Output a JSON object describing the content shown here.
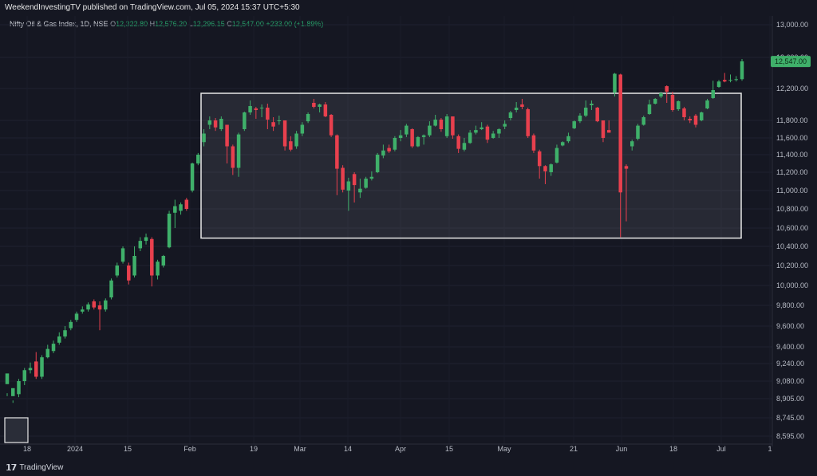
{
  "header": {
    "publish_line": "WeekendInvestingTV published on TradingView.com, Jul 05, 2024 15:37 UTC+5:30",
    "symbol": "Nifty Oil & Gas Index, 1D, NSE",
    "open_label": "O",
    "open": "12,322.80",
    "high_label": "H",
    "high": "12,576.20",
    "low_label": "L",
    "low": "12,296.15",
    "close_label": "C",
    "close": "12,547.00",
    "change": "+233.00 (+1.89%)"
  },
  "footer": {
    "brand": "TradingView"
  },
  "colors": {
    "up": "#3fb06a",
    "down": "#e8404e",
    "background": "#151722",
    "box_border": "#e8e8e8"
  },
  "chart_data": {
    "type": "candlestick",
    "y_axis_labels": [
      "13,000.00",
      "12,600.00",
      "12,200.00",
      "11,800.00",
      "11,600.00",
      "11,400.00",
      "11,200.00",
      "11,000.00",
      "10,800.00",
      "10,600.00",
      "10,400.00",
      "10,200.00",
      "10,000.00",
      "9,800.00",
      "9,600.00",
      "9,400.00",
      "9,240.00",
      "9,080.00",
      "8,905.00",
      "8,745.00",
      "8,595.00"
    ],
    "y_axis_values": [
      13000,
      12600,
      12200,
      11800,
      11600,
      11400,
      11200,
      11000,
      10800,
      10600,
      10400,
      10200,
      10000,
      9800,
      9600,
      9400,
      9240,
      9080,
      8905,
      8745,
      8595
    ],
    "x_axis_labels": [
      "18",
      "2024",
      "15",
      "Feb",
      "19",
      "Mar",
      "14",
      "Apr",
      "15",
      "May",
      "21",
      "Jun",
      "18",
      "Jul",
      "1"
    ],
    "last_price": 12547.0,
    "last_price_label": "12,547.00",
    "consolidation_range": {
      "low": 10490,
      "high": 12140
    },
    "candles": [
      [
        9050,
        9150,
        8960,
        8930
      ],
      [
        8930,
        9010,
        8890,
        8870
      ],
      [
        8950,
        9080,
        9100,
        8920
      ],
      [
        9080,
        9180,
        9200,
        9040
      ],
      [
        9180,
        9200,
        9250,
        9150
      ],
      [
        9260,
        9120,
        9350,
        9100
      ],
      [
        9120,
        9300,
        9320,
        9100
      ],
      [
        9300,
        9380,
        9420,
        9290
      ],
      [
        9360,
        9430,
        9460,
        9340
      ],
      [
        9440,
        9500,
        9540,
        9420
      ],
      [
        9500,
        9560,
        9600,
        9480
      ],
      [
        9580,
        9640,
        9660,
        9560
      ],
      [
        9660,
        9720,
        9740,
        9640
      ],
      [
        9740,
        9760,
        9790,
        9720
      ],
      [
        9760,
        9810,
        9830,
        9740
      ],
      [
        9840,
        9780,
        9860,
        9760
      ],
      [
        9800,
        9760,
        9840,
        9560
      ],
      [
        9760,
        9850,
        9870,
        9740
      ],
      [
        9880,
        10050,
        10070,
        9860
      ],
      [
        10100,
        10200,
        10230,
        10080
      ],
      [
        10240,
        10380,
        10400,
        10220
      ],
      [
        10200,
        10050,
        10230,
        10010
      ],
      [
        10100,
        10300,
        10400,
        10080
      ],
      [
        10380,
        10460,
        10500,
        10350
      ],
      [
        10460,
        10500,
        10540,
        10420
      ],
      [
        10480,
        10100,
        10500,
        9990
      ],
      [
        10100,
        10240,
        10260,
        10060
      ],
      [
        10200,
        10300,
        10310,
        10180
      ],
      [
        10390,
        10750,
        10780,
        10380
      ],
      [
        10760,
        10830,
        10900,
        10600
      ],
      [
        10780,
        10850,
        10870,
        10740
      ],
      [
        10900,
        10800,
        10920,
        10780
      ],
      [
        11000,
        11300,
        11310,
        10980
      ],
      [
        11300,
        11400,
        11420,
        11280
      ],
      [
        11550,
        11650,
        11700,
        11500
      ],
      [
        11750,
        11800,
        11850,
        11700
      ],
      [
        11800,
        11720,
        11830,
        11680
      ],
      [
        11700,
        11820,
        11850,
        11680
      ],
      [
        11750,
        11500,
        11750,
        11300
      ],
      [
        11500,
        11250,
        11520,
        11170
      ],
      [
        11250,
        11640,
        11660,
        11150
      ],
      [
        11700,
        11900,
        11910,
        11680
      ],
      [
        11900,
        11980,
        12050,
        11870
      ],
      [
        11950,
        11930,
        11970,
        11820
      ],
      [
        11950,
        11960,
        12000,
        11840
      ],
      [
        11960,
        11810,
        12010,
        11700
      ],
      [
        11780,
        11730,
        11840,
        11680
      ],
      [
        11800,
        11800,
        11860,
        11750
      ],
      [
        11800,
        11500,
        11800,
        11450
      ],
      [
        11560,
        11460,
        11620,
        11440
      ],
      [
        11500,
        11650,
        11680,
        11470
      ],
      [
        11650,
        11750,
        11780,
        11620
      ],
      [
        11790,
        11880,
        11900,
        11770
      ],
      [
        12020,
        11970,
        12070,
        11950
      ],
      [
        11970,
        12000,
        12010,
        11900
      ],
      [
        12000,
        11850,
        12030,
        11840
      ],
      [
        11870,
        11630,
        11880,
        11610
      ],
      [
        11630,
        11240,
        11640,
        10950
      ],
      [
        11250,
        11010,
        11280,
        10980
      ],
      [
        11000,
        11100,
        11140,
        10780
      ],
      [
        11180,
        11060,
        11200,
        10870
      ],
      [
        10980,
        11020,
        11130,
        10920
      ],
      [
        11030,
        11130,
        11150,
        11020
      ],
      [
        11130,
        11150,
        11210,
        11110
      ],
      [
        11200,
        11400,
        11420,
        11190
      ],
      [
        11390,
        11450,
        11520,
        11360
      ],
      [
        11480,
        11440,
        11520,
        11420
      ],
      [
        11460,
        11600,
        11620,
        11440
      ],
      [
        11600,
        11630,
        11690,
        11560
      ],
      [
        11640,
        11740,
        11760,
        11610
      ],
      [
        11700,
        11500,
        11710,
        11480
      ],
      [
        11500,
        11610,
        11620,
        11490
      ],
      [
        11610,
        11630,
        11640,
        11520
      ],
      [
        11630,
        11740,
        11790,
        11610
      ],
      [
        11740,
        11810,
        11870,
        11730
      ],
      [
        11810,
        11700,
        11830,
        11670
      ],
      [
        11620,
        11850,
        11880,
        11600
      ],
      [
        11850,
        11630,
        11850,
        11590
      ],
      [
        11620,
        11470,
        11640,
        11420
      ],
      [
        11460,
        11540,
        11600,
        11440
      ],
      [
        11540,
        11660,
        11690,
        11530
      ],
      [
        11660,
        11690,
        11740,
        11640
      ],
      [
        11700,
        11720,
        11780,
        11690
      ],
      [
        11730,
        11580,
        11750,
        11540
      ],
      [
        11600,
        11650,
        11680,
        11590
      ],
      [
        11650,
        11700,
        11710,
        11600
      ],
      [
        11730,
        11760,
        11800,
        11700
      ],
      [
        11830,
        11900,
        11920,
        11800
      ],
      [
        11930,
        11960,
        12030,
        11900
      ],
      [
        12000,
        11970,
        12070,
        11940
      ],
      [
        11940,
        11620,
        11960,
        11600
      ],
      [
        11630,
        11450,
        11650,
        11420
      ],
      [
        11440,
        11270,
        11460,
        11130
      ],
      [
        11270,
        11210,
        11280,
        11070
      ],
      [
        11200,
        11290,
        11300,
        11160
      ],
      [
        11310,
        11480,
        11520,
        11300
      ],
      [
        11510,
        11550,
        11560,
        11500
      ],
      [
        11560,
        11620,
        11660,
        11540
      ],
      [
        11710,
        11790,
        11800,
        11700
      ],
      [
        11790,
        11860,
        11890,
        11770
      ],
      [
        11860,
        11960,
        12050,
        11840
      ],
      [
        11990,
        12010,
        12050,
        11930
      ],
      [
        11960,
        11790,
        11970,
        11780
      ],
      [
        11800,
        11600,
        11800,
        11550
      ],
      [
        11690,
        11660,
        11800,
        11660
      ],
      [
        12150,
        12390,
        12400,
        12100
      ],
      [
        12380,
        10980,
        12390,
        10500
      ],
      [
        11270,
        11240,
        11290,
        10670
      ],
      [
        11500,
        11560,
        11580,
        11450
      ],
      [
        11590,
        11740,
        11760,
        11570
      ],
      [
        11750,
        11840,
        11860,
        11740
      ],
      [
        11880,
        12000,
        12060,
        11870
      ],
      [
        12010,
        12070,
        12080,
        12000
      ],
      [
        12100,
        12140,
        12160,
        12080
      ],
      [
        12230,
        12160,
        12240,
        12020
      ],
      [
        12120,
        11930,
        12160,
        11910
      ],
      [
        11940,
        12040,
        12050,
        11920
      ],
      [
        11950,
        11840,
        11970,
        11800
      ],
      [
        11820,
        11800,
        11850,
        11770
      ],
      [
        11860,
        11750,
        11880,
        11720
      ],
      [
        11800,
        11900,
        11910,
        11790
      ],
      [
        11950,
        12050,
        12070,
        11940
      ],
      [
        12080,
        12180,
        12300,
        12070
      ],
      [
        12220,
        12290,
        12310,
        12210
      ],
      [
        12310,
        12290,
        12400,
        12280
      ],
      [
        12300,
        12310,
        12380,
        12280
      ],
      [
        12310,
        12320,
        12360,
        12290
      ],
      [
        12320,
        12550,
        12580,
        12300
      ]
    ]
  }
}
